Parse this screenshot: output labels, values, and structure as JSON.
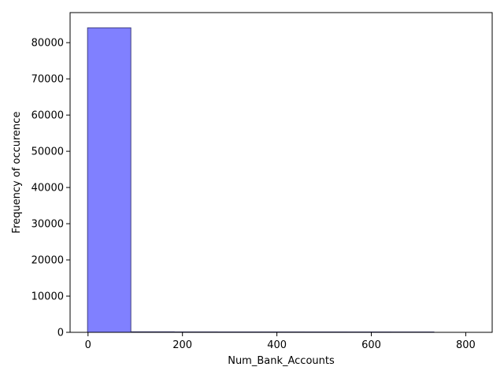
{
  "chart_data": {
    "type": "bar",
    "subtype": "histogram",
    "title": "",
    "xlabel": "Num_Bank_Accounts",
    "ylabel": "Frequency of occurence",
    "xlim": [
      -38,
      856
    ],
    "ylim": [
      0,
      88300
    ],
    "x_ticks": [
      0,
      200,
      400,
      600,
      800
    ],
    "y_ticks": [
      0,
      10000,
      20000,
      30000,
      40000,
      50000,
      60000,
      70000,
      80000
    ],
    "x_tick_labels": [
      "0",
      "200",
      "400",
      "600",
      "800"
    ],
    "y_tick_labels": [
      "0",
      "10000",
      "20000",
      "30000",
      "40000",
      "50000",
      "60000",
      "70000",
      "80000"
    ],
    "bins": [
      {
        "start": -1,
        "end": 90.7,
        "count": 84100
      },
      {
        "start": 90.7,
        "end": 182.4,
        "count": 150
      },
      {
        "start": 182.4,
        "end": 274.1,
        "count": 120
      },
      {
        "start": 274.1,
        "end": 365.8,
        "count": 110
      },
      {
        "start": 365.8,
        "end": 457.5,
        "count": 115
      },
      {
        "start": 457.5,
        "end": 549.2,
        "count": 110
      },
      {
        "start": 549.2,
        "end": 640.9,
        "count": 105
      },
      {
        "start": 640.9,
        "end": 732.6,
        "count": 100
      }
    ],
    "bar_color": "#8080ff",
    "edge_color": "#404080",
    "grid": false,
    "legend": false
  }
}
